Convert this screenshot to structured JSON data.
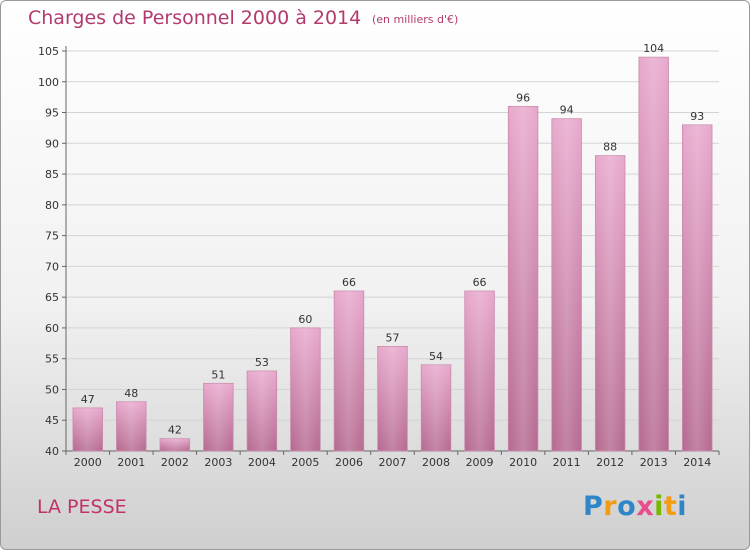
{
  "header": {
    "title": "Charges de Personnel 2000 à 2014",
    "subtitle": "(en milliers d'€)"
  },
  "footer": {
    "commune": "LA PESSE",
    "brand_letters": [
      "P",
      "r",
      "o",
      "x",
      "i",
      "t",
      "i"
    ],
    "brand_colors": [
      "#2e86c8",
      "#f39c12",
      "#2e86c8",
      "#e84c8b",
      "#7ab800",
      "#f39c12",
      "#2e86c8"
    ]
  },
  "chart_data": {
    "type": "bar",
    "categories": [
      "2000",
      "2001",
      "2002",
      "2003",
      "2004",
      "2005",
      "2006",
      "2007",
      "2008",
      "2009",
      "2010",
      "2011",
      "2012",
      "2013",
      "2014"
    ],
    "values": [
      47,
      48,
      42,
      51,
      53,
      60,
      66,
      57,
      54,
      66,
      96,
      94,
      88,
      104,
      93
    ],
    "value_labels": [
      "47",
      "48",
      "42",
      "51",
      "53",
      "60",
      "66",
      "57",
      "54",
      "66",
      "96",
      "94",
      "88",
      "104",
      "93"
    ],
    "ylim": [
      40,
      105
    ],
    "yticks": [
      40,
      45,
      50,
      55,
      60,
      65,
      70,
      75,
      80,
      85,
      90,
      95,
      100,
      105
    ],
    "ytick_labels": [
      "40",
      "45",
      "50",
      "55",
      "60",
      "65",
      "70",
      "75",
      "80",
      "85",
      "90",
      "95",
      "100",
      "105"
    ],
    "grid": true,
    "bar_color": "#d98ab5",
    "title": "Charges de Personnel 2000 à 2014",
    "xlabel": "",
    "ylabel": ""
  }
}
